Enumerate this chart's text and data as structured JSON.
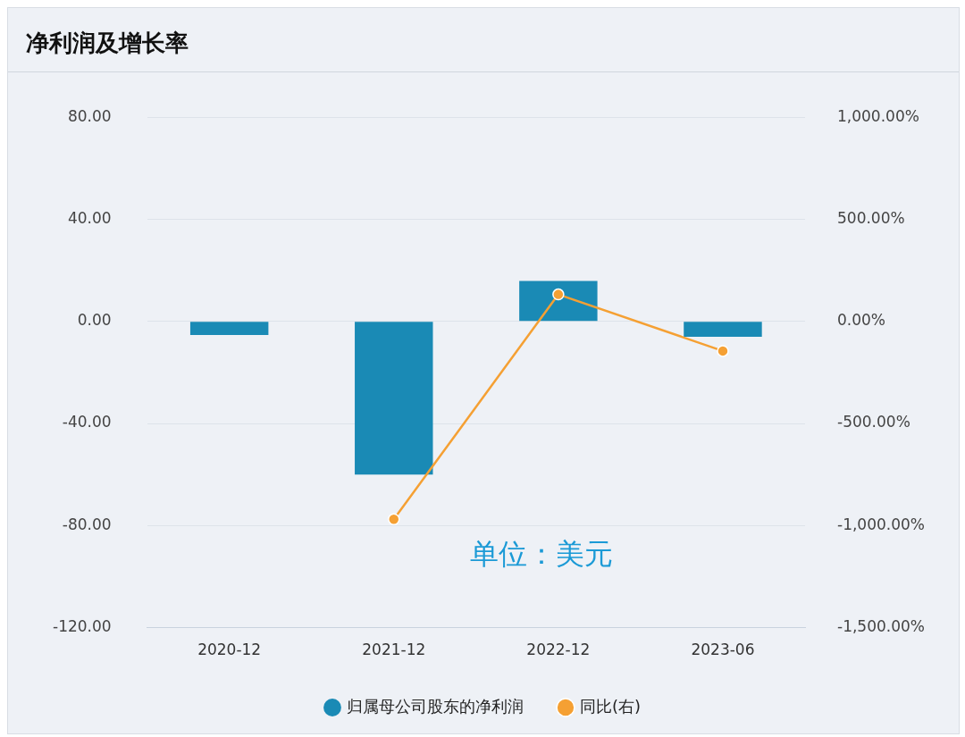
{
  "chart_data": {
    "type": "bar",
    "title": "净利润及增长率",
    "categories": [
      "2020-12",
      "2021-12",
      "2022-12",
      "2023-06"
    ],
    "series": [
      {
        "name": "归属母公司股东的净利润",
        "color": "#1a8ab5",
        "values": [
          -5.3,
          -60,
          15.8,
          -6
        ]
      },
      {
        "name": "同比(右)",
        "type": "line",
        "axis": "y2",
        "color": "#f5a033",
        "marker": "circle",
        "values": [
          null,
          -969,
          132,
          -145
        ]
      }
    ],
    "ylim": [
      -120,
      80
    ],
    "yticks": [
      {
        "value": -120,
        "label": "-120.00"
      },
      {
        "value": -80,
        "label": "-80.00"
      },
      {
        "value": -40,
        "label": "-40.00"
      },
      {
        "value": 0,
        "label": "0.00"
      },
      {
        "value": 40,
        "label": "40.00"
      },
      {
        "value": 80,
        "label": "80.00"
      }
    ],
    "y2lim": [
      -1500,
      1000
    ],
    "y2ticks": [
      {
        "value": -1500,
        "label": "-1,500.00%"
      },
      {
        "value": -1000,
        "label": "-1,000.00%"
      },
      {
        "value": -500,
        "label": "-500.00%"
      },
      {
        "value": 0,
        "label": "0.00%"
      },
      {
        "value": 500,
        "label": "500.00%"
      },
      {
        "value": 1000,
        "label": "1,000.00%"
      }
    ],
    "grid": "y",
    "legend": "bottom",
    "annotations": [
      "单位：美元"
    ]
  }
}
